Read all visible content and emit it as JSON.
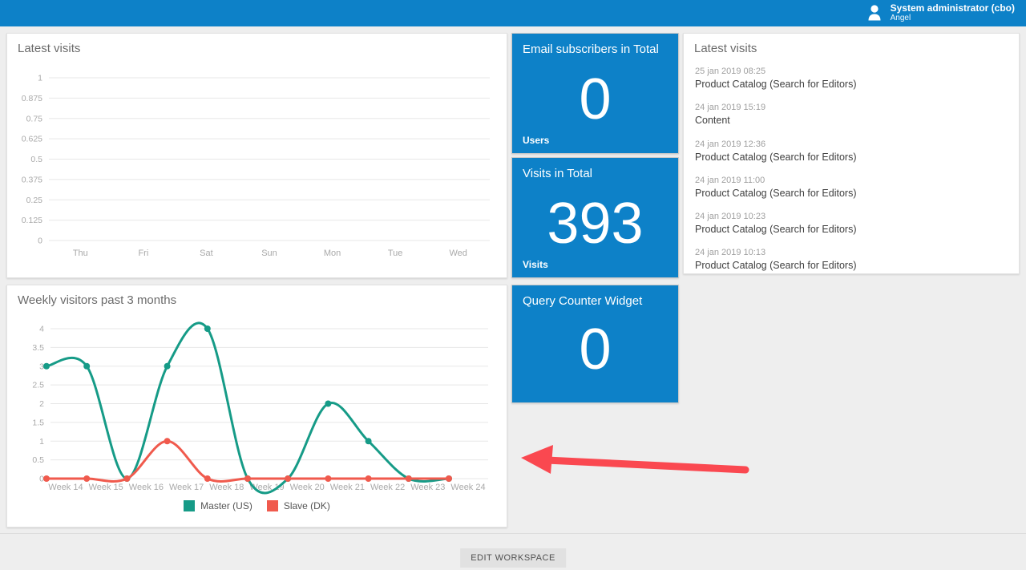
{
  "header": {
    "background_color": "#0d81c8",
    "user": {
      "name": "System administrator (cbo)",
      "subname": "Angel"
    }
  },
  "tiles": [
    {
      "title": "Email subscribers in Total",
      "value": "0",
      "label": "Users"
    },
    {
      "title": "Visits in Total",
      "value": "393",
      "label": "Visits"
    },
    {
      "title": "Query Counter Widget",
      "value": "0",
      "label": ""
    }
  ],
  "tile_color": "#0d81c8",
  "visits_list": {
    "title": "Latest visits",
    "items": [
      {
        "time": "25 jan 2019 08:25",
        "name": "Product Catalog (Search for Editors)"
      },
      {
        "time": "24 jan 2019 15:19",
        "name": "Content"
      },
      {
        "time": "24 jan 2019 12:36",
        "name": "Product Catalog (Search for Editors)"
      },
      {
        "time": "24 jan 2019 11:00",
        "name": "Product Catalog (Search for Editors)"
      },
      {
        "time": "24 jan 2019 10:23",
        "name": "Product Catalog (Search for Editors)"
      },
      {
        "time": "24 jan 2019 10:13",
        "name": "Product Catalog (Search for Editors)"
      }
    ]
  },
  "footer": {
    "edit_button_label": "EDIT WORKSPACE"
  },
  "annotation": {
    "type": "arrow-left",
    "color": "#fa4850"
  },
  "chart_data": [
    {
      "type": "line",
      "title": "Latest visits",
      "categories": [
        "Thu",
        "Fri",
        "Sat",
        "Sun",
        "Mon",
        "Tue",
        "Wed"
      ],
      "series": [],
      "yticks": [
        "1",
        "0.875",
        "0.75",
        "0.625",
        "0.5",
        "0.375",
        "0.25",
        "0.125",
        "0"
      ],
      "ylim": [
        0,
        1
      ],
      "grid": true,
      "legend_position": "none"
    },
    {
      "type": "line",
      "title": "Weekly visitors past 3 months",
      "categories": [
        "Week 14",
        "Week 15",
        "Week 16",
        "Week 17",
        "Week 18",
        "Week 19",
        "Week 20",
        "Week 21",
        "Week 22",
        "Week 23",
        "Week 24"
      ],
      "series": [
        {
          "name": "Master (US)",
          "color": "#169b87",
          "values": [
            3,
            3,
            0,
            3,
            4,
            0,
            0,
            2,
            1,
            0,
            0
          ]
        },
        {
          "name": "Slave (DK)",
          "color": "#f05a4d",
          "values": [
            0,
            0,
            0,
            1,
            0,
            0,
            0,
            0,
            0,
            0,
            0
          ]
        }
      ],
      "yticks": [
        "4",
        "3.5",
        "3",
        "2.5",
        "2",
        "1.5",
        "1",
        "0.5",
        "0"
      ],
      "ylim": [
        0,
        4
      ],
      "grid": true,
      "legend_position": "bottom"
    }
  ]
}
